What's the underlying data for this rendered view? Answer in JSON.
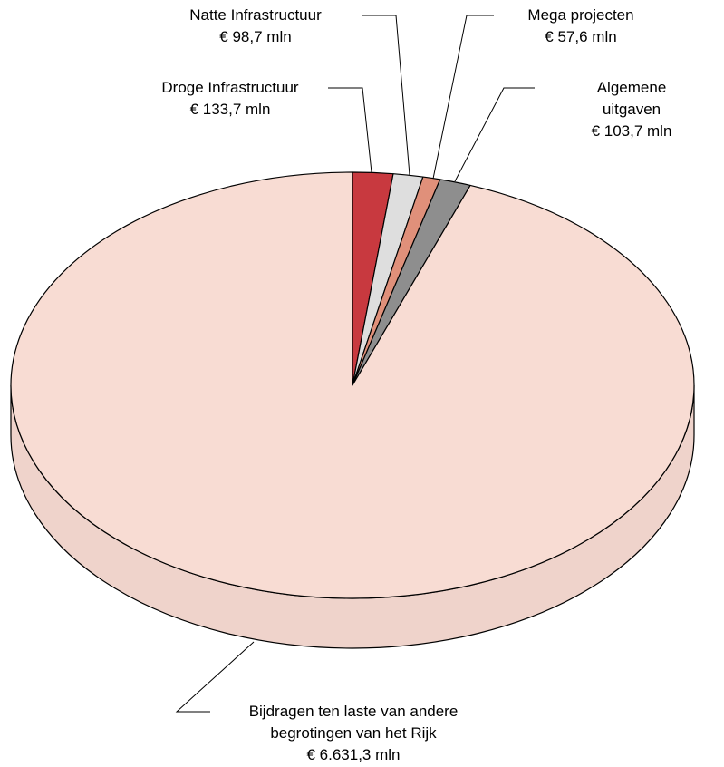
{
  "chart_data": {
    "type": "pie",
    "categories": [
      "Droge Infrastructuur",
      "Natte Infrastructuur",
      "Mega projecten",
      "Algemene uitgaven",
      "Bijdragen ten laste van andere\nbegrotingen van het Rijk"
    ],
    "values": [
      133.7,
      98.7,
      57.6,
      103.7,
      6631.3
    ],
    "value_labels": [
      "€ 133,7 mln",
      "€ 98,7 mln",
      "€ 57,6 mln",
      "€ 103,7 mln",
      "€ 6.631,3 mln"
    ],
    "colors": [
      "#c8393f",
      "#dedede",
      "#e0907a",
      "#8e8e8e",
      "#f8dcd3"
    ]
  }
}
